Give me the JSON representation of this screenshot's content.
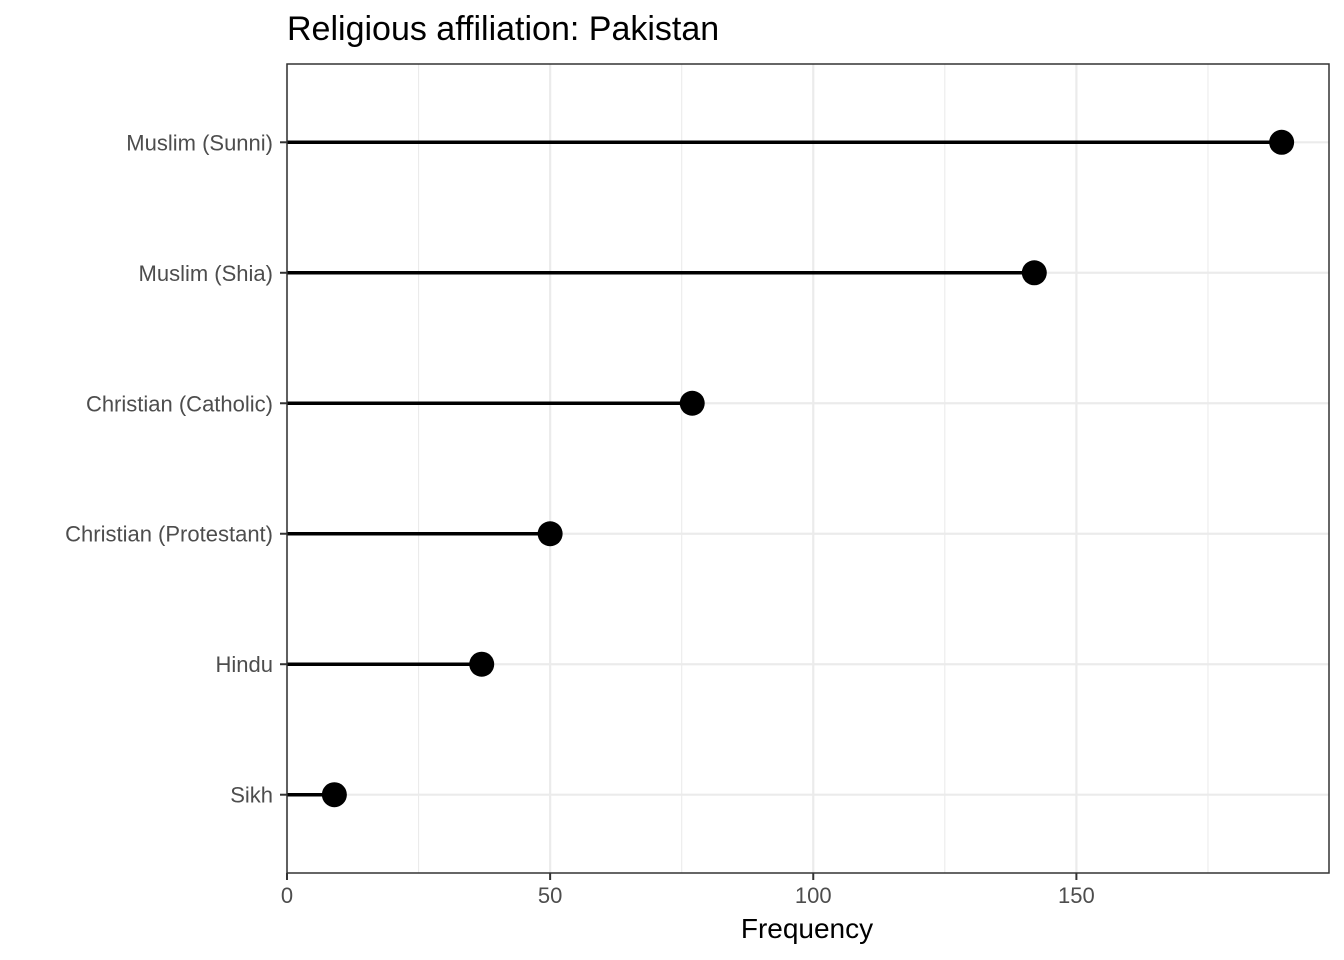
{
  "chart_data": {
    "type": "lollipop",
    "title": "Religious affiliation: Pakistan",
    "xlabel": "Frequency",
    "ylabel": "",
    "categories": [
      "Muslim (Sunni)",
      "Muslim (Shia)",
      "Christian (Catholic)",
      "Christian (Protestant)",
      "Hindu",
      "Sikh"
    ],
    "values": [
      189,
      142,
      77,
      50,
      37,
      9
    ],
    "xlim": [
      0,
      198
    ],
    "xticks": [
      0,
      50,
      100,
      150
    ],
    "xtick_labels": [
      "0",
      "50",
      "100",
      "150"
    ],
    "grid": true,
    "point_color": "#000000"
  }
}
